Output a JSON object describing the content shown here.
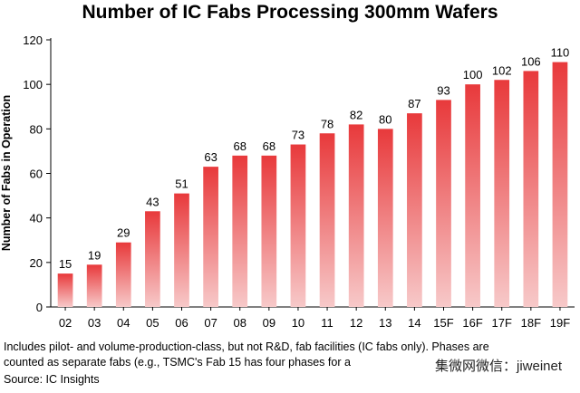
{
  "chart_data": {
    "type": "bar",
    "title": "Number of IC Fabs Processing 300mm Wafers",
    "ylabel": "Number of Fabs in Operation",
    "xlabel": "",
    "ylim": [
      0,
      120
    ],
    "yticks": [
      0,
      20,
      40,
      60,
      80,
      100,
      120
    ],
    "grid": false,
    "legend": "none",
    "bar_color_top": "#e8393b",
    "bar_color_bottom": "#f7c9c9",
    "categories": [
      "02",
      "03",
      "04",
      "05",
      "06",
      "07",
      "08",
      "09",
      "10",
      "11",
      "12",
      "13",
      "14",
      "15F",
      "16F",
      "17F",
      "18F",
      "19F"
    ],
    "values": [
      15,
      19,
      29,
      43,
      51,
      63,
      68,
      68,
      73,
      78,
      82,
      80,
      87,
      93,
      100,
      102,
      106,
      110
    ]
  },
  "footnote": {
    "line1": "Includes pilot- and volume-production-class, but not R&D, fab facilities (IC fabs only).  Phases are",
    "line2": "counted as separate fabs (e.g., TSMC's Fab 15 has four phases for a"
  },
  "watermark": "集微网微信：jiweinet",
  "source": "Source: IC Insights"
}
